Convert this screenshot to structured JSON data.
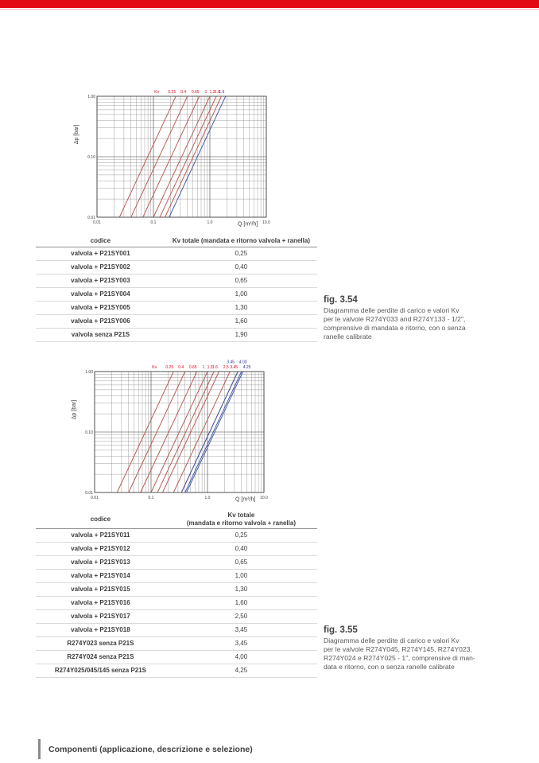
{
  "colors": {
    "banner_red": "#e30613",
    "banner_underline": "#f3a7ae",
    "curve_red": "#b5504a",
    "curve_blue": "#3a4fa0",
    "label_red": "#e2001a",
    "label_blue": "#2e3192",
    "grid_minor": "#7a7a7a",
    "grid_major": "#3f3f3f",
    "text_dark": "#3c3c3c"
  },
  "chart_data": [
    {
      "type": "line",
      "title": "",
      "xlabel": "Q [m³/h]",
      "ylabel": "Δp [bar]",
      "x_scale": "log",
      "y_scale": "log",
      "xlim": [
        0.01,
        10.0
      ],
      "ylim": [
        0.01,
        1.0
      ],
      "x_tick_labels": [
        "0.01",
        "0.1",
        "1.0",
        "10.0"
      ],
      "y_tick_labels": [
        "1.00",
        "0.10",
        "0.01"
      ],
      "grid": "log-log with minor gridlines",
      "legend_position": "labels above top axis",
      "kv_prefix_label": "Kv",
      "relation": "Δp = (Q/Kv)² ; each straight line runs from (0.1·Kv, 0.01) to (Kv, 1.00)",
      "series": [
        {
          "label": "0.25",
          "kv": 0.25,
          "color": "red"
        },
        {
          "label": "0.4",
          "kv": 0.4,
          "color": "red"
        },
        {
          "label": "0.65",
          "kv": 0.65,
          "color": "red"
        },
        {
          "label": "1",
          "kv": 1.0,
          "color": "red"
        },
        {
          "label": "1.3",
          "kv": 1.3,
          "color": "red"
        },
        {
          "label": "1.6",
          "kv": 1.6,
          "color": "red"
        },
        {
          "label": "1.9",
          "kv": 1.9,
          "color": "blue"
        }
      ]
    },
    {
      "type": "line",
      "title": "",
      "xlabel": "Q [m³/h]",
      "ylabel": "Δp [bar]",
      "x_scale": "log",
      "y_scale": "log",
      "xlim": [
        0.01,
        10.0
      ],
      "ylim": [
        0.01,
        1.0
      ],
      "x_tick_labels": [
        "0.01",
        "0.1",
        "1.0",
        "10.0"
      ],
      "y_tick_labels": [
        "1.00",
        "0.10",
        "0.01"
      ],
      "grid": "log-log with minor gridlines",
      "legend_position": "labels above top axis",
      "kv_prefix_label": "Kv",
      "relation": "Δp = (Q/Kv)² ; each straight line runs from (0.1·Kv, 0.01) to (Kv, 1.00)",
      "series": [
        {
          "label": "0.25",
          "kv": 0.25,
          "color": "red"
        },
        {
          "label": "0.4",
          "kv": 0.4,
          "color": "red"
        },
        {
          "label": "0.65",
          "kv": 0.65,
          "color": "red"
        },
        {
          "label": "1",
          "kv": 1.0,
          "color": "red"
        },
        {
          "label": "1.3",
          "kv": 1.3,
          "color": "red"
        },
        {
          "label": "1.6",
          "kv": 1.6,
          "color": "red"
        },
        {
          "label": "2.5",
          "kv": 2.5,
          "color": "red"
        },
        {
          "label": "3.45",
          "kv": 3.45,
          "color": "red"
        },
        {
          "label": "3.45",
          "kv": 3.45,
          "color": "blue",
          "label_row": 1,
          "label_dx": -4
        },
        {
          "label": "4.00",
          "kv": 4.0,
          "color": "blue",
          "label_row": 1,
          "label_dx": 7
        },
        {
          "label": "4.25",
          "kv": 4.25,
          "color": "blue",
          "label_row": 0,
          "label_dx": 10
        }
      ]
    }
  ],
  "figures": [
    {
      "caption_title": "fig. 3.54",
      "caption_lines": [
        "Diagramma delle perdite di carico e valori Kv",
        "per le valvole R274Y033 and R274Y133 - 1/2\",",
        "comprensive di mandata e ritorno, con o senza",
        "ranelle calibrate"
      ],
      "table": {
        "header_code": "codice",
        "header_kv_lines": [
          "Kv totale (mandata e ritorno valvola + ranella)"
        ],
        "rows": [
          [
            "valvola + P21SY001",
            "0,25"
          ],
          [
            "valvola + P21SY002",
            "0,40"
          ],
          [
            "valvola + P21SY003",
            "0,65"
          ],
          [
            "valvola + P21SY004",
            "1,00"
          ],
          [
            "valvola + P21SY005",
            "1,30"
          ],
          [
            "valvola + P21SY006",
            "1,60"
          ],
          [
            "valvola senza P21S",
            "1,90"
          ]
        ]
      }
    },
    {
      "caption_title": "fig. 3.55",
      "caption_lines": [
        "Diagramma delle perdite di carico e valori Kv",
        "per le valvole R274Y045, R274Y145, R274Y023,",
        "R274Y024 e R274Y025 - 1\", comprensive di man-",
        "data e ritorno, con o senza ranelle calibrate"
      ],
      "table": {
        "header_code": "codice",
        "header_kv_lines": [
          "Kv totale",
          "(mandata e ritorno valvola + ranella)"
        ],
        "rows": [
          [
            "valvola + P21SY011",
            "0,25"
          ],
          [
            "valvola + P21SY012",
            "0,40"
          ],
          [
            "valvola + P21SY013",
            "0,65"
          ],
          [
            "valvola + P21SY014",
            "1,00"
          ],
          [
            "valvola + P21SY015",
            "1,30"
          ],
          [
            "valvola + P21SY016",
            "1,60"
          ],
          [
            "valvola + P21SY017",
            "2,50"
          ],
          [
            "valvola + P21SY018",
            "3,45"
          ],
          [
            "R274Y023 senza P21S",
            "3,45"
          ],
          [
            "R274Y024 senza P21S",
            "4,00"
          ],
          [
            "R274Y025/045/145 senza P21S",
            "4,25"
          ]
        ]
      }
    }
  ],
  "footer": {
    "text": "Componenti (applicazione, descrizione e selezione)"
  }
}
